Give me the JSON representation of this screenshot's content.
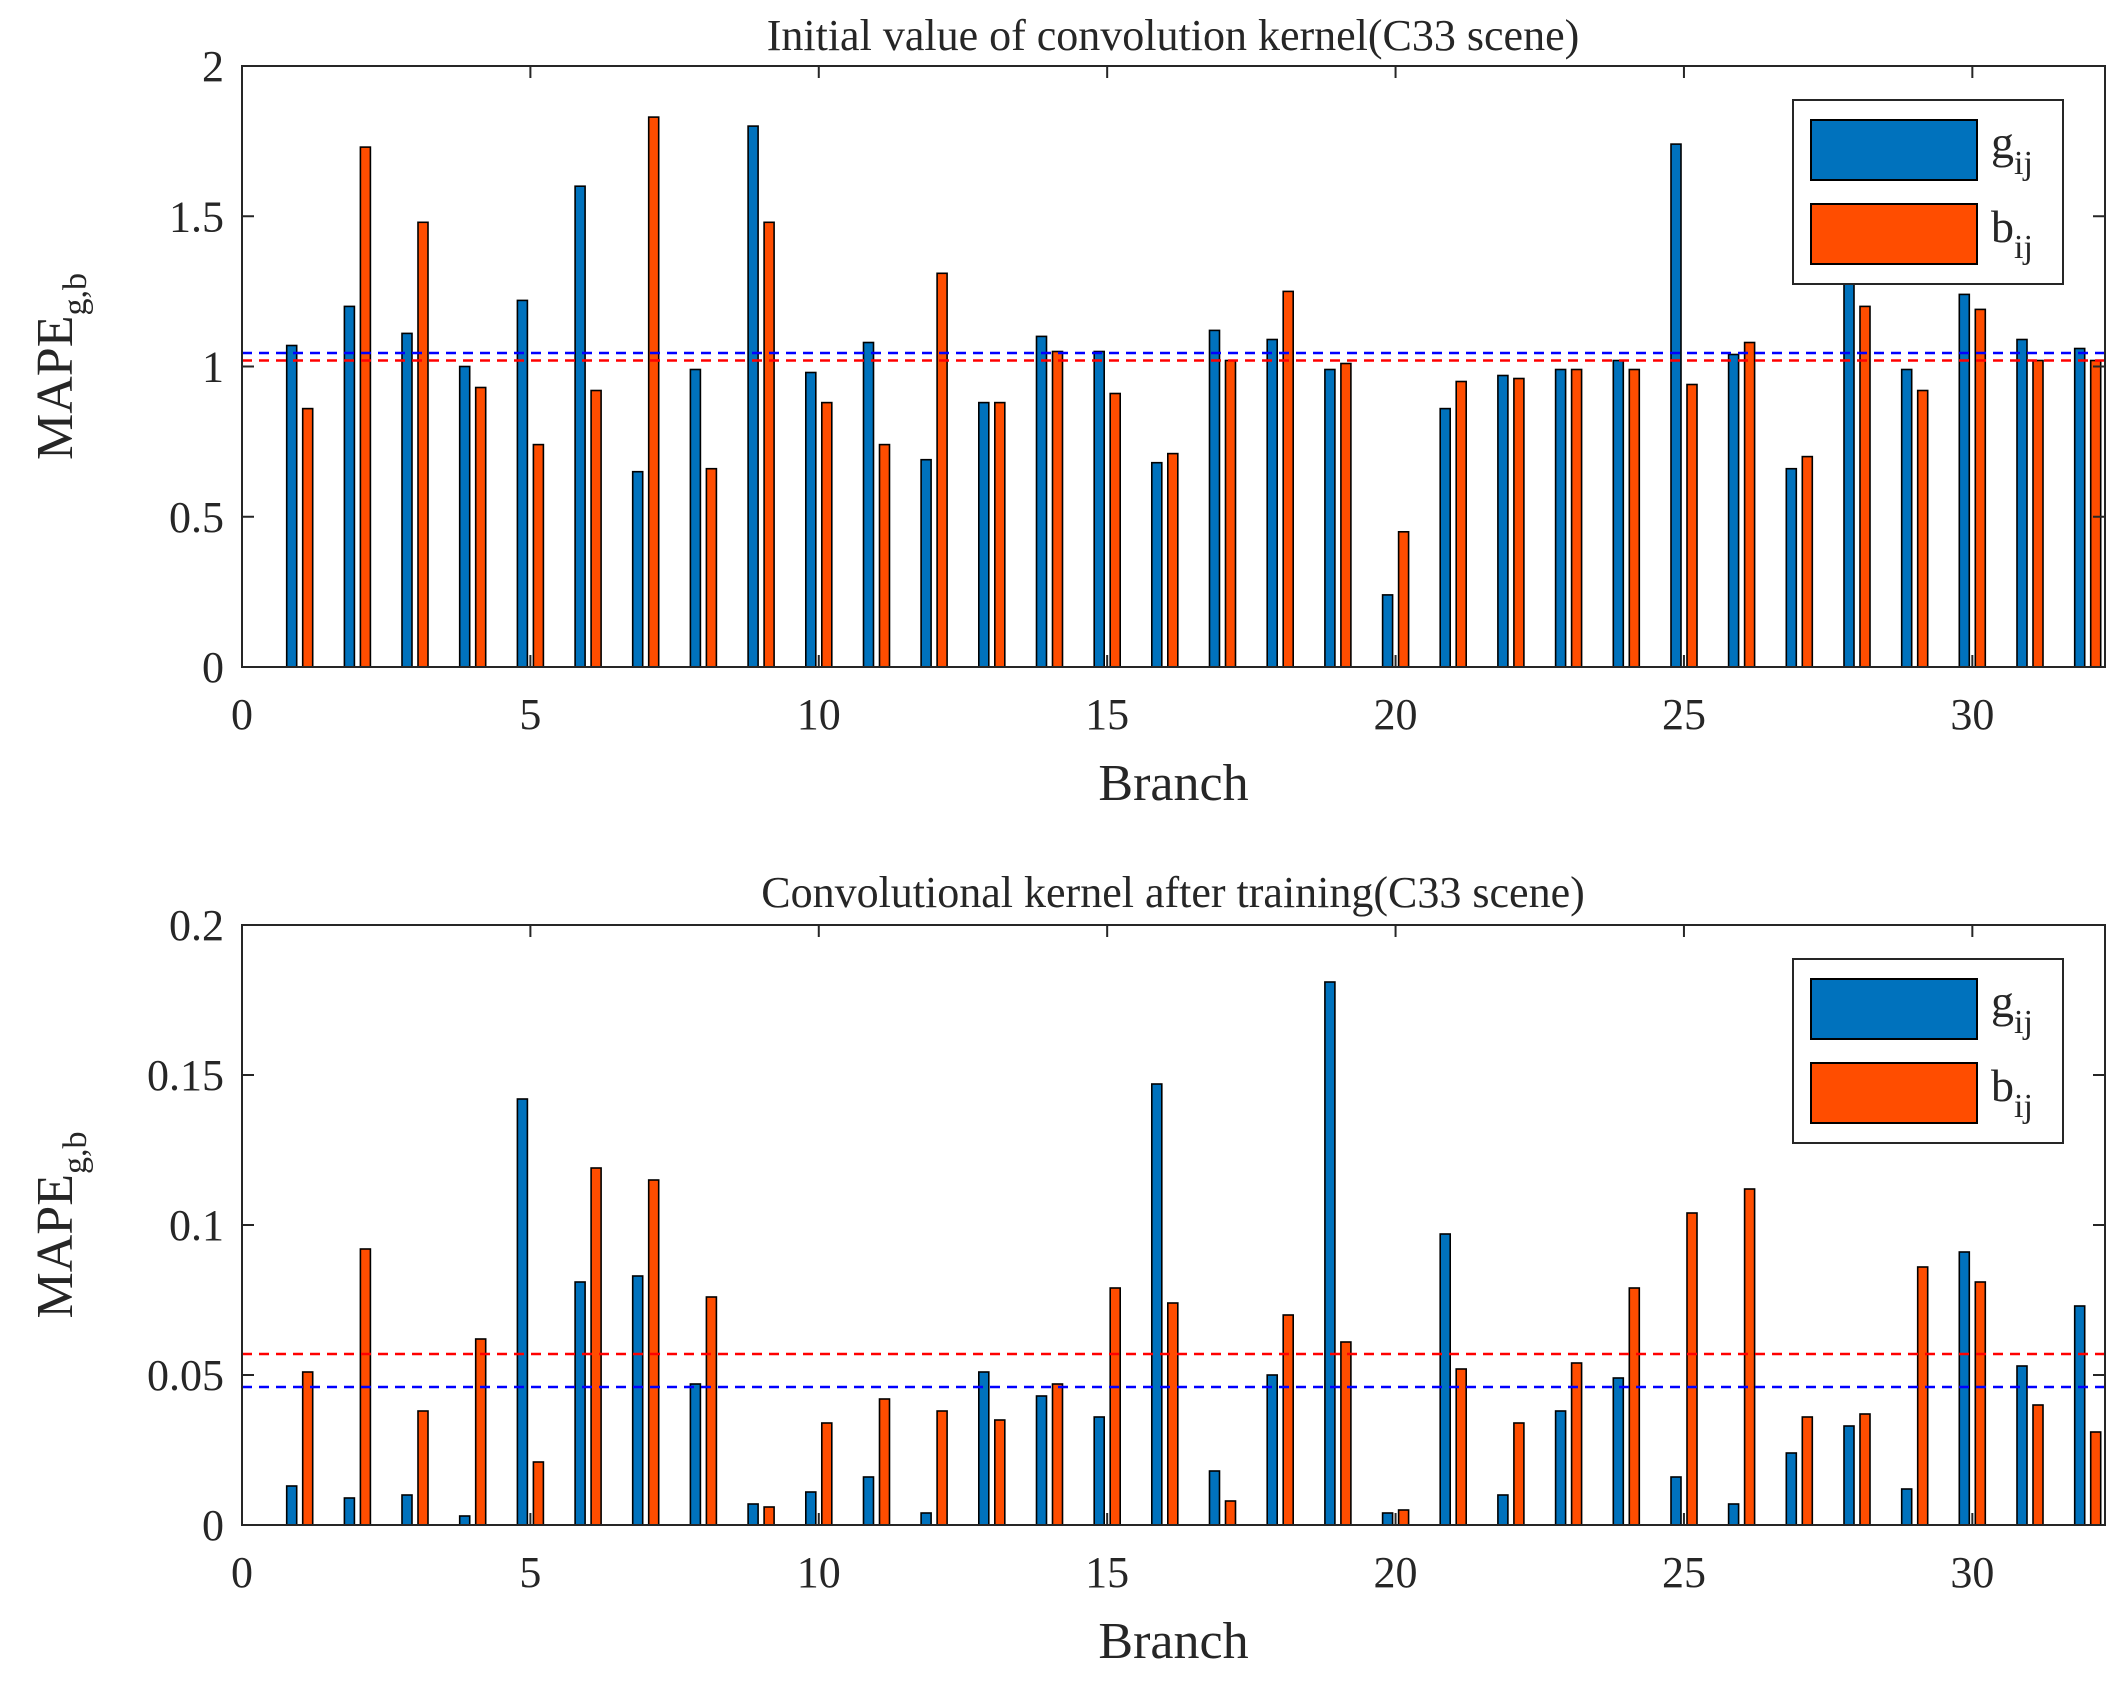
{
  "chart_data": [
    {
      "type": "bar",
      "title": "Initial value of convolution kernel(C33 scene)",
      "xlabel": "Branch",
      "ylabel": {
        "base": "MAPE",
        "sub": "g,b"
      },
      "xlim": [
        0,
        32.3
      ],
      "ylim": [
        0,
        2
      ],
      "xticks": [
        0,
        5,
        10,
        15,
        20,
        25,
        30
      ],
      "yticks": [
        0,
        0.5,
        1,
        1.5,
        2
      ],
      "ytick_labels": [
        "0",
        "0.5",
        "1",
        "1.5",
        "2"
      ],
      "grid": false,
      "legend_position": "top-right",
      "categories": [
        1,
        2,
        3,
        4,
        5,
        6,
        7,
        8,
        9,
        10,
        11,
        12,
        13,
        14,
        15,
        16,
        17,
        18,
        19,
        20,
        21,
        22,
        23,
        24,
        25,
        26,
        27,
        28,
        29,
        30,
        31,
        32
      ],
      "series": [
        {
          "key": "g",
          "legend": {
            "base": "g",
            "sub": "ij"
          },
          "color": "#0072BD",
          "values": [
            1.07,
            1.2,
            1.11,
            1.0,
            1.22,
            1.6,
            0.65,
            0.99,
            1.8,
            0.98,
            1.08,
            0.69,
            0.88,
            1.1,
            1.05,
            0.68,
            1.12,
            1.09,
            0.99,
            0.24,
            0.86,
            0.97,
            0.99,
            1.02,
            1.74,
            1.04,
            0.66,
            1.3,
            0.99,
            1.24,
            1.09,
            1.06
          ],
          "mean": 1.045
        },
        {
          "key": "b",
          "legend": {
            "base": "b",
            "sub": "ij"
          },
          "color": "#FF4D00",
          "values": [
            0.86,
            1.73,
            1.48,
            0.93,
            0.74,
            0.92,
            1.83,
            0.66,
            1.48,
            0.88,
            0.74,
            1.31,
            0.88,
            1.05,
            0.91,
            0.71,
            1.02,
            1.25,
            1.01,
            0.45,
            0.95,
            0.96,
            0.99,
            0.99,
            0.94,
            1.08,
            0.7,
            1.2,
            0.92,
            1.19,
            1.02,
            1.02
          ],
          "mean": 1.02
        }
      ]
    },
    {
      "type": "bar",
      "title": "Convolutional kernel after training(C33 scene)",
      "xlabel": "Branch",
      "ylabel": {
        "base": "MAPE",
        "sub": "g,b"
      },
      "xlim": [
        0,
        32.3
      ],
      "ylim": [
        0,
        0.2
      ],
      "xticks": [
        0,
        5,
        10,
        15,
        20,
        25,
        30
      ],
      "yticks": [
        0,
        0.05,
        0.1,
        0.15,
        0.2
      ],
      "ytick_labels": [
        "0",
        "0.05",
        "0.1",
        "0.15",
        "0.2"
      ],
      "grid": false,
      "legend_position": "top-right",
      "categories": [
        1,
        2,
        3,
        4,
        5,
        6,
        7,
        8,
        9,
        10,
        11,
        12,
        13,
        14,
        15,
        16,
        17,
        18,
        19,
        20,
        21,
        22,
        23,
        24,
        25,
        26,
        27,
        28,
        29,
        30,
        31,
        32
      ],
      "series": [
        {
          "key": "g",
          "legend": {
            "base": "g",
            "sub": "ij"
          },
          "color": "#0072BD",
          "values": [
            0.013,
            0.009,
            0.01,
            0.003,
            0.142,
            0.081,
            0.083,
            0.047,
            0.007,
            0.011,
            0.016,
            0.004,
            0.051,
            0.043,
            0.036,
            0.147,
            0.018,
            0.05,
            0.181,
            0.004,
            0.097,
            0.01,
            0.038,
            0.049,
            0.016,
            0.007,
            0.024,
            0.033,
            0.012,
            0.091,
            0.053,
            0.073
          ],
          "mean": 0.046
        },
        {
          "key": "b",
          "legend": {
            "base": "b",
            "sub": "ij"
          },
          "color": "#FF4D00",
          "values": [
            0.051,
            0.092,
            0.038,
            0.062,
            0.021,
            0.119,
            0.115,
            0.076,
            0.006,
            0.034,
            0.042,
            0.038,
            0.035,
            0.047,
            0.079,
            0.074,
            0.008,
            0.07,
            0.061,
            0.005,
            0.052,
            0.034,
            0.054,
            0.079,
            0.104,
            0.112,
            0.036,
            0.037,
            0.086,
            0.081,
            0.04,
            0.031
          ],
          "mean": 0.057
        }
      ]
    }
  ],
  "colors": {
    "axis": "#262626",
    "g_mean_line": "#0000FF",
    "b_mean_line": "#FF0000"
  }
}
